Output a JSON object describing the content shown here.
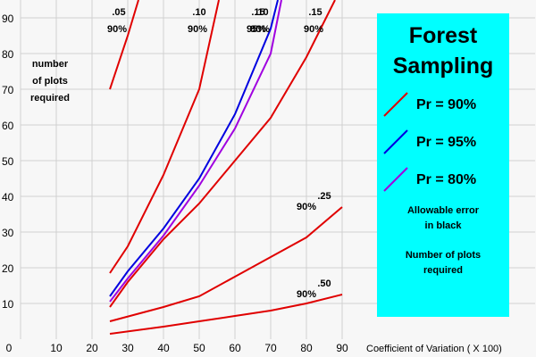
{
  "chart_data": {
    "type": "line",
    "title": "Forest Sampling",
    "y_label": [
      "number",
      "of plots",
      "required"
    ],
    "x_label": "Coefficient of Variation ( X 100)",
    "xlim": [
      0,
      144
    ],
    "ylim": [
      0,
      95
    ],
    "xticks": [
      0,
      10,
      20,
      30,
      40,
      50,
      60,
      70,
      80,
      90
    ],
    "yticks": [
      10,
      20,
      30,
      40,
      50,
      60,
      70,
      80,
      90
    ],
    "grid": true,
    "legend": [
      {
        "label": "Pr = 90%",
        "color": "#e00000"
      },
      {
        "label": "Pr = 95%",
        "color": "#0000e0"
      },
      {
        "label": "Pr = 80%",
        "color": "#a000e0"
      }
    ],
    "notes": [
      "Allowable error in black",
      "Number of plots required"
    ],
    "series": [
      {
        "labels": [
          ".05",
          "90%"
        ],
        "color": "#e00000",
        "x": [
          25,
          30,
          33
        ],
        "values": [
          70,
          85,
          95
        ]
      },
      {
        "labels": [
          ".10",
          "90%"
        ],
        "color": "#e00000",
        "x": [
          25,
          30,
          40,
          50,
          55.5
        ],
        "values": [
          18.5,
          26,
          46,
          70,
          95
        ]
      },
      {
        "labels": [
          ".15",
          "95%"
        ],
        "color": "#0000e0",
        "x": [
          25,
          30,
          40,
          50,
          60,
          70,
          72
        ],
        "values": [
          12,
          19,
          31,
          45,
          63,
          87,
          95
        ]
      },
      {
        "labels": [
          ".10",
          "80%"
        ],
        "color": "#a000e0",
        "x": [
          25,
          30,
          40,
          50,
          60,
          70,
          73
        ],
        "values": [
          10.5,
          17,
          29,
          43,
          59,
          80,
          95
        ]
      },
      {
        "labels": [
          ".15",
          "90%"
        ],
        "color": "#e00000",
        "x": [
          25,
          30,
          40,
          50,
          60,
          70,
          80,
          88
        ],
        "values": [
          9,
          16,
          28,
          38,
          50,
          62,
          79,
          95
        ]
      },
      {
        "labels": [
          ".25",
          "90%"
        ],
        "color": "#e00000",
        "x": [
          25,
          40,
          50,
          60,
          70,
          80,
          90
        ],
        "values": [
          5,
          9,
          12,
          17.5,
          23,
          28.5,
          37
        ]
      },
      {
        "labels": [
          ".50",
          "90%"
        ],
        "color": "#e00000",
        "x": [
          25,
          40,
          50,
          60,
          70,
          80,
          90
        ],
        "values": [
          1.5,
          3.5,
          5,
          6.5,
          8,
          10,
          12.5
        ]
      }
    ]
  }
}
